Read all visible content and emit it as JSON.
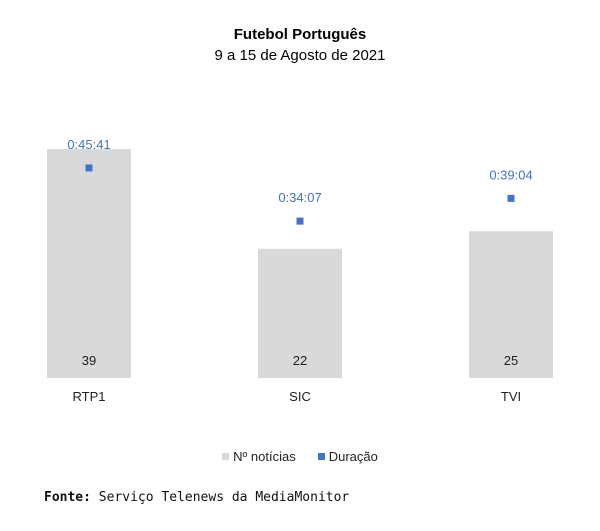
{
  "chart_data": {
    "type": "bar",
    "title": "Futebol Português",
    "subtitle": "9 a 15 de Agosto de 2021",
    "categories": [
      "RTP1",
      "SIC",
      "TVI"
    ],
    "series": [
      {
        "name": "Nº notícias",
        "kind": "bar",
        "color": "#d9d9d9",
        "values": [
          39,
          22,
          25
        ],
        "labels": [
          "39",
          "22",
          "25"
        ]
      },
      {
        "name": "Duração",
        "kind": "marker",
        "color": "#4472c4",
        "values_seconds": [
          2741,
          2047,
          2344
        ],
        "labels": [
          "0:45:41",
          "0:34:07",
          "0:39:04"
        ]
      }
    ],
    "ylim": [
      0,
      39
    ],
    "y2lim": [
      0,
      2988
    ],
    "legend": "bottom"
  },
  "source": {
    "label": "Fonte:",
    "text": " Serviço Telenews da MediaMonitor"
  }
}
